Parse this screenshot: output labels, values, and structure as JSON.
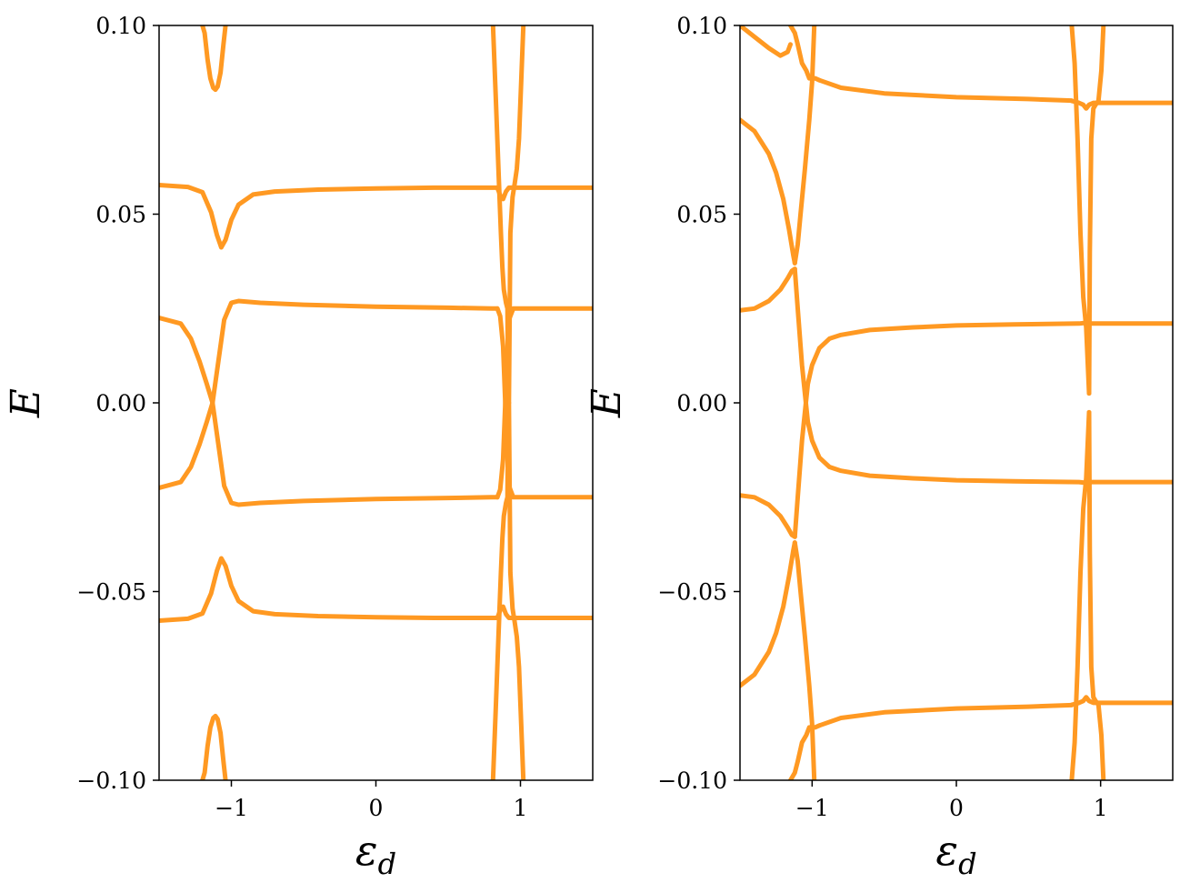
{
  "chart_data": [
    {
      "type": "line",
      "title": "",
      "xlabel": "ε",
      "xlabel_sub": "d",
      "ylabel": "E",
      "xlim": [
        -1.5,
        1.5
      ],
      "ylim": [
        -0.1,
        0.1
      ],
      "xticks": [
        -1,
        0,
        1
      ],
      "xtick_labels": [
        "−1",
        "0",
        "1"
      ],
      "yticks": [
        -0.1,
        -0.05,
        0.0,
        0.05,
        0.1
      ],
      "ytick_labels": [
        "−0.10",
        "−0.05",
        "0.00",
        "0.05",
        "0.10"
      ],
      "color": "#ff9922",
      "grid": false,
      "series": [
        {
          "x": [
            -1.5,
            -1.35,
            -1.28,
            -1.22,
            -1.17,
            -1.13,
            -1.09,
            -1.05,
            -1.0,
            -0.95,
            -0.8,
            -0.5,
            0.0,
            0.5,
            0.8,
            0.84
          ],
          "y": [
            0.0225,
            0.021,
            0.017,
            0.011,
            0.005,
            0.0,
            -0.011,
            -0.022,
            -0.0265,
            -0.027,
            -0.0265,
            -0.026,
            -0.0255,
            -0.0252,
            -0.025,
            -0.025
          ]
        },
        {
          "x": [
            -1.5,
            -1.35,
            -1.28,
            -1.22,
            -1.17,
            -1.13,
            -1.09,
            -1.05,
            -1.0,
            -0.95,
            -0.8,
            -0.5,
            0.0,
            0.5,
            0.8,
            0.84
          ],
          "y": [
            -0.0225,
            -0.021,
            -0.017,
            -0.011,
            -0.005,
            0.0,
            0.011,
            0.022,
            0.0265,
            0.027,
            0.0265,
            0.026,
            0.0255,
            0.0252,
            0.025,
            0.025
          ]
        },
        {
          "x": [
            -1.5,
            -1.3,
            -1.2,
            -1.14,
            -1.1,
            -1.07,
            -1.04,
            -1.0,
            -0.95,
            -0.85,
            -0.7,
            -0.4,
            0.0,
            0.4,
            0.8,
            0.84
          ],
          "y": [
            0.0577,
            0.0572,
            0.0558,
            0.0505,
            0.0445,
            0.0412,
            0.0432,
            0.0485,
            0.0525,
            0.0552,
            0.056,
            0.0565,
            0.0568,
            0.057,
            0.057,
            0.057
          ]
        },
        {
          "x": [
            -1.5,
            -1.3,
            -1.2,
            -1.14,
            -1.1,
            -1.07,
            -1.04,
            -1.0,
            -0.95,
            -0.85,
            -0.7,
            -0.4,
            0.0,
            0.4,
            0.8,
            0.84
          ],
          "y": [
            -0.0577,
            -0.0572,
            -0.0558,
            -0.0505,
            -0.0445,
            -0.0412,
            -0.0432,
            -0.0485,
            -0.0525,
            -0.0552,
            -0.056,
            -0.0565,
            -0.0568,
            -0.057,
            -0.057,
            -0.057
          ]
        },
        {
          "x": [
            -1.2,
            -1.185,
            -1.165,
            -1.145,
            -1.125,
            -1.11,
            -1.095,
            -1.075,
            -1.055,
            -1.04
          ],
          "y": [
            0.1,
            0.098,
            0.091,
            0.086,
            0.0835,
            0.083,
            0.0838,
            0.0875,
            0.095,
            0.1
          ]
        },
        {
          "x": [
            -1.2,
            -1.185,
            -1.165,
            -1.145,
            -1.125,
            -1.11,
            -1.095,
            -1.075,
            -1.055,
            -1.04
          ],
          "y": [
            -0.1,
            -0.098,
            -0.091,
            -0.086,
            -0.0835,
            -0.083,
            -0.0838,
            -0.0875,
            -0.095,
            -0.1
          ]
        },
        {
          "x": [
            0.81,
            0.83,
            0.85,
            0.865,
            0.875,
            0.885,
            0.9,
            0.91,
            0.92
          ],
          "y": [
            0.1,
            0.08,
            0.06,
            0.045,
            0.036,
            0.03,
            0.0265,
            0.025,
            -0.025
          ]
        },
        {
          "x": [
            0.81,
            0.83,
            0.85,
            0.865,
            0.875,
            0.885,
            0.9,
            0.91,
            0.92
          ],
          "y": [
            -0.1,
            -0.08,
            -0.06,
            -0.045,
            -0.036,
            -0.03,
            -0.0265,
            -0.025,
            0.025
          ]
        },
        {
          "x": [
            1.02,
            1.005,
            0.99,
            0.975,
            0.96,
            0.945,
            0.93,
            0.92
          ],
          "y": [
            0.1,
            0.085,
            0.07,
            0.062,
            0.058,
            0.0545,
            0.045,
            0.0
          ]
        },
        {
          "x": [
            1.02,
            1.005,
            0.99,
            0.975,
            0.96,
            0.945,
            0.93,
            0.92
          ],
          "y": [
            -0.1,
            -0.085,
            -0.07,
            -0.062,
            -0.058,
            -0.0545,
            -0.045,
            0.0
          ]
        },
        {
          "x": [
            0.84,
            0.86,
            0.88,
            0.9,
            0.92,
            0.94
          ],
          "y": [
            0.057,
            0.055,
            0.054,
            0.056,
            0.057,
            0.057
          ]
        },
        {
          "x": [
            0.84,
            0.86,
            0.88,
            0.9,
            0.92,
            0.94
          ],
          "y": [
            -0.057,
            -0.055,
            -0.054,
            -0.056,
            -0.057,
            -0.057
          ]
        },
        {
          "x": [
            0.94,
            1.0,
            1.2,
            1.5
          ],
          "y": [
            0.057,
            0.057,
            0.057,
            0.057
          ]
        },
        {
          "x": [
            0.94,
            1.0,
            1.2,
            1.5
          ],
          "y": [
            -0.057,
            -0.057,
            -0.057,
            -0.057
          ]
        },
        {
          "x": [
            0.84,
            0.86,
            0.88,
            0.9,
            0.92,
            0.95,
            1.0,
            1.2,
            1.5
          ],
          "y": [
            -0.025,
            -0.023,
            -0.015,
            0.005,
            0.022,
            0.025,
            0.025,
            0.025,
            0.025
          ]
        },
        {
          "x": [
            0.84,
            0.86,
            0.88,
            0.9,
            0.92,
            0.95,
            1.0,
            1.2,
            1.5
          ],
          "y": [
            0.025,
            0.023,
            0.015,
            -0.005,
            -0.022,
            -0.025,
            -0.025,
            -0.025,
            -0.025
          ]
        }
      ]
    },
    {
      "type": "line",
      "title": "",
      "xlabel": "ε",
      "xlabel_sub": "d",
      "ylabel": "E",
      "xlim": [
        -1.5,
        1.5
      ],
      "ylim": [
        -0.1,
        0.1
      ],
      "xticks": [
        -1,
        0,
        1
      ],
      "xtick_labels": [
        "−1",
        "0",
        "1"
      ],
      "yticks": [
        -0.1,
        -0.05,
        0.0,
        0.05,
        0.1
      ],
      "ytick_labels": [
        "−0.10",
        "−0.05",
        "0.00",
        "0.05",
        "0.10"
      ],
      "color": "#ff9922",
      "grid": false,
      "series": [
        {
          "x": [
            -1.5,
            -1.4,
            -1.3,
            -1.22,
            -1.17,
            -1.15
          ],
          "y": [
            0.1,
            0.097,
            0.094,
            0.092,
            0.093,
            0.095
          ]
        },
        {
          "x": [
            -1.15,
            -1.12,
            -1.1,
            -1.07,
            -1.04,
            -1.02,
            -0.98,
            -0.95
          ],
          "y": [
            0.1,
            0.098,
            0.095,
            0.09,
            0.088,
            0.086,
            0.086,
            0.0855
          ]
        },
        {
          "x": [
            -0.95,
            -0.8,
            -0.5,
            0.0,
            0.5,
            0.8
          ],
          "y": [
            0.0855,
            0.0835,
            0.082,
            0.081,
            0.0805,
            0.0801
          ]
        },
        {
          "x": [
            -1.5,
            -1.4,
            -1.3,
            -1.25,
            -1.2,
            -1.16,
            -1.13,
            -1.12
          ],
          "y": [
            0.075,
            0.072,
            0.066,
            0.061,
            0.054,
            0.046,
            0.039,
            0.037
          ]
        },
        {
          "x": [
            -1.12,
            -1.1,
            -1.08,
            -1.05,
            -1.02,
            -1.0,
            -0.985
          ],
          "y": [
            0.037,
            0.042,
            0.05,
            0.062,
            0.075,
            0.085,
            0.1
          ]
        },
        {
          "x": [
            -1.5,
            -1.4,
            -1.3,
            -1.22,
            -1.17,
            -1.14,
            -1.12
          ],
          "y": [
            0.0245,
            0.025,
            0.027,
            0.03,
            0.033,
            0.035,
            0.0355
          ]
        },
        {
          "x": [
            -1.12,
            -1.1,
            -1.07,
            -1.03,
            -1.0,
            -0.95,
            -0.88,
            -0.8,
            -0.6,
            -0.3,
            0.0,
            0.4,
            0.85,
            0.9
          ],
          "y": [
            0.0355,
            0.025,
            0.01,
            -0.005,
            -0.01,
            -0.0145,
            -0.017,
            -0.018,
            -0.0193,
            -0.02,
            -0.0205,
            -0.0208,
            -0.021,
            -0.0212
          ]
        },
        {
          "x": [
            -1.5,
            -1.4,
            -1.3,
            -1.22,
            -1.17,
            -1.14,
            -1.12
          ],
          "y": [
            -0.0245,
            -0.025,
            -0.027,
            -0.03,
            -0.033,
            -0.035,
            -0.0355
          ]
        },
        {
          "x": [
            -1.12,
            -1.1,
            -1.07,
            -1.03,
            -1.0,
            -0.95,
            -0.88,
            -0.8,
            -0.6,
            -0.3,
            0.0,
            0.4,
            0.85,
            0.9
          ],
          "y": [
            -0.0355,
            -0.025,
            -0.01,
            0.005,
            0.01,
            0.0145,
            0.017,
            0.018,
            0.0193,
            0.02,
            0.0205,
            0.0208,
            0.021,
            0.0212
          ]
        },
        {
          "x": [
            -1.5,
            -1.4,
            -1.3,
            -1.25,
            -1.2,
            -1.16,
            -1.13,
            -1.12
          ],
          "y": [
            -0.075,
            -0.072,
            -0.066,
            -0.061,
            -0.054,
            -0.046,
            -0.039,
            -0.037
          ]
        },
        {
          "x": [
            -1.12,
            -1.1,
            -1.08,
            -1.05,
            -1.02,
            -1.0,
            -0.985
          ],
          "y": [
            -0.037,
            -0.042,
            -0.05,
            -0.062,
            -0.075,
            -0.085,
            -0.1
          ]
        },
        {
          "x": [
            -0.95,
            -0.8,
            -0.5,
            0.0,
            0.5,
            0.8
          ],
          "y": [
            -0.0855,
            -0.0835,
            -0.082,
            -0.081,
            -0.0805,
            -0.0801
          ]
        },
        {
          "x": [
            -1.15,
            -1.12,
            -1.1,
            -1.07,
            -1.04,
            -1.02,
            -0.98,
            -0.95
          ],
          "y": [
            -0.1,
            -0.098,
            -0.095,
            -0.09,
            -0.088,
            -0.086,
            -0.086,
            -0.0855
          ]
        },
        {
          "x": [
            0.8,
            0.82,
            0.84,
            0.86,
            0.88,
            0.9,
            0.92
          ],
          "y": [
            0.1,
            0.09,
            0.07,
            0.045,
            0.028,
            0.02,
            0.0025
          ]
        },
        {
          "x": [
            0.8,
            0.82,
            0.84,
            0.86,
            0.88,
            0.9,
            0.92
          ],
          "y": [
            -0.1,
            -0.09,
            -0.07,
            -0.045,
            -0.028,
            -0.02,
            -0.0025
          ]
        },
        {
          "x": [
            1.02,
            1.005,
            0.985,
            0.965,
            0.95,
            0.935,
            0.925,
            0.92
          ],
          "y": [
            0.1,
            0.088,
            0.08,
            0.079,
            0.078,
            0.07,
            0.04,
            0.0025
          ]
        },
        {
          "x": [
            1.02,
            1.005,
            0.985,
            0.965,
            0.95,
            0.935,
            0.925,
            0.92
          ],
          "y": [
            -0.1,
            -0.088,
            -0.08,
            -0.079,
            -0.078,
            -0.07,
            -0.04,
            -0.0025
          ]
        },
        {
          "x": [
            0.8,
            0.85,
            0.88,
            0.9,
            0.92,
            0.95,
            1.0,
            1.2,
            1.5
          ],
          "y": [
            0.08,
            0.0795,
            0.079,
            0.078,
            0.079,
            0.0795,
            0.0795,
            0.0795,
            0.0795
          ]
        },
        {
          "x": [
            0.8,
            0.85,
            0.88,
            0.9,
            0.92,
            0.95,
            1.0,
            1.2,
            1.5
          ],
          "y": [
            -0.08,
            -0.0795,
            -0.079,
            -0.078,
            -0.079,
            -0.0795,
            -0.0795,
            -0.0795,
            -0.0795
          ]
        },
        {
          "x": [
            0.9,
            0.92,
            0.95,
            1.0,
            1.2,
            1.5
          ],
          "y": [
            0.0212,
            0.021,
            0.021,
            0.021,
            0.021,
            0.021
          ]
        },
        {
          "x": [
            0.9,
            0.92,
            0.95,
            1.0,
            1.2,
            1.5
          ],
          "y": [
            -0.0212,
            -0.021,
            -0.021,
            -0.021,
            -0.021,
            -0.021
          ]
        }
      ]
    }
  ]
}
